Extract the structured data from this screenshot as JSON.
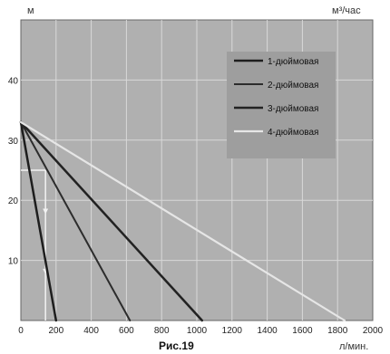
{
  "chart_data": {
    "type": "line",
    "title": "",
    "caption": "Рис.19",
    "ylabel": "м",
    "y2label": "м³/час",
    "xlabel": "л/мин.",
    "xlim": [
      0,
      2000
    ],
    "ylim": [
      0,
      50
    ],
    "xticks": [
      0,
      200,
      400,
      600,
      800,
      1000,
      1200,
      1400,
      1600,
      1800,
      2000
    ],
    "yticks": [
      10,
      20,
      30,
      40
    ],
    "grid": true,
    "legend_position": "top-right",
    "series": [
      {
        "name": "1-дюймовая",
        "color": "#1e1e1e",
        "x": [
          0,
          200
        ],
        "y": [
          33,
          0
        ]
      },
      {
        "name": "2-дюймовая",
        "color": "#2c2c2c",
        "x": [
          0,
          620
        ],
        "y": [
          33,
          0
        ]
      },
      {
        "name": "3-дюймовая",
        "color": "#222222",
        "x": [
          0,
          1030
        ],
        "y": [
          33,
          0
        ]
      },
      {
        "name": "4-дюймовая",
        "color": "#e6e6e6",
        "x": [
          0,
          1840
        ],
        "y": [
          33,
          0
        ]
      }
    ],
    "annotations": {
      "reference_level": 25,
      "reference_x": 140
    }
  }
}
